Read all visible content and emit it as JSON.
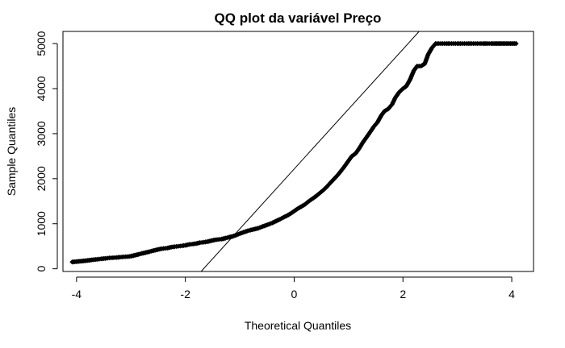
{
  "chart_data": {
    "type": "scatter",
    "title": "QQ plot da variável Preço",
    "xlabel": "Theoretical Quantiles",
    "ylabel": "Sample Quantiles",
    "xlim": [
      -4.25,
      4.4
    ],
    "ylim": [
      -60,
      5270
    ],
    "grid": false,
    "legend": "none",
    "x_ticks": [
      -4,
      -2,
      0,
      2,
      4
    ],
    "x_tick_labels": [
      "-4",
      "-2",
      "0",
      "2",
      "4"
    ],
    "y_ticks": [
      0,
      1000,
      2000,
      3000,
      4000,
      5000
    ],
    "y_tick_labels": [
      "0",
      "1000",
      "2000",
      "3000",
      "4000",
      "5000"
    ],
    "marker_color": "#000000",
    "reference_line": {
      "intercept": 2215,
      "slope": 1330
    },
    "series": [
      {
        "points": [
          [
            -4.08,
            150
          ],
          [
            -3.82,
            180
          ],
          [
            -3.7,
            200
          ],
          [
            -3.62,
            210
          ],
          [
            -3.55,
            220
          ],
          [
            -3.47,
            230
          ],
          [
            -3.4,
            240
          ],
          [
            -3.33,
            245
          ],
          [
            -3.26,
            250
          ],
          [
            -3.2,
            258
          ],
          [
            -3.13,
            265
          ],
          [
            -3.06,
            270
          ],
          [
            -3.0,
            280
          ],
          [
            -2.93,
            300
          ],
          [
            -2.86,
            320
          ],
          [
            -2.8,
            340
          ],
          [
            -2.73,
            360
          ],
          [
            -2.66,
            380
          ],
          [
            -2.6,
            400
          ],
          [
            -2.53,
            420
          ],
          [
            -2.46,
            440
          ],
          [
            -2.4,
            450
          ],
          [
            -2.33,
            460
          ],
          [
            -2.26,
            480
          ],
          [
            -2.2,
            490
          ],
          [
            -2.13,
            500
          ],
          [
            -2.06,
            510
          ],
          [
            -2.0,
            520
          ],
          [
            -1.93,
            540
          ],
          [
            -1.86,
            550
          ],
          [
            -1.8,
            560
          ],
          [
            -1.73,
            580
          ],
          [
            -1.66,
            590
          ],
          [
            -1.6,
            600
          ],
          [
            -1.53,
            620
          ],
          [
            -1.46,
            640
          ],
          [
            -1.4,
            650
          ],
          [
            -1.33,
            660
          ],
          [
            -1.26,
            680
          ],
          [
            -1.2,
            700
          ],
          [
            -1.13,
            720
          ],
          [
            -1.06,
            750
          ],
          [
            -1.0,
            780
          ],
          [
            -0.93,
            810
          ],
          [
            -0.86,
            840
          ],
          [
            -0.8,
            860
          ],
          [
            -0.73,
            880
          ],
          [
            -0.66,
            900
          ],
          [
            -0.6,
            930
          ],
          [
            -0.53,
            960
          ],
          [
            -0.46,
            990
          ],
          [
            -0.4,
            1020
          ],
          [
            -0.33,
            1060
          ],
          [
            -0.26,
            1100
          ],
          [
            -0.2,
            1140
          ],
          [
            -0.13,
            1180
          ],
          [
            -0.06,
            1230
          ],
          [
            0.0,
            1280
          ],
          [
            0.06,
            1330
          ],
          [
            0.13,
            1380
          ],
          [
            0.2,
            1430
          ],
          [
            0.26,
            1490
          ],
          [
            0.33,
            1550
          ],
          [
            0.4,
            1610
          ],
          [
            0.46,
            1670
          ],
          [
            0.53,
            1740
          ],
          [
            0.6,
            1820
          ],
          [
            0.66,
            1900
          ],
          [
            0.73,
            1990
          ],
          [
            0.8,
            2080
          ],
          [
            0.86,
            2170
          ],
          [
            0.93,
            2280
          ],
          [
            1.0,
            2400
          ],
          [
            1.06,
            2500
          ],
          [
            1.13,
            2560
          ],
          [
            1.2,
            2680
          ],
          [
            1.26,
            2800
          ],
          [
            1.33,
            2920
          ],
          [
            1.4,
            3040
          ],
          [
            1.46,
            3150
          ],
          [
            1.53,
            3250
          ],
          [
            1.6,
            3400
          ],
          [
            1.66,
            3500
          ],
          [
            1.73,
            3550
          ],
          [
            1.8,
            3650
          ],
          [
            1.86,
            3800
          ],
          [
            1.93,
            3920
          ],
          [
            2.0,
            4000
          ],
          [
            2.06,
            4050
          ],
          [
            2.13,
            4200
          ],
          [
            2.2,
            4400
          ],
          [
            2.26,
            4500
          ],
          [
            2.33,
            4500
          ],
          [
            2.4,
            4550
          ],
          [
            2.46,
            4750
          ],
          [
            2.53,
            4900
          ],
          [
            2.6,
            5000
          ],
          [
            2.66,
            5000
          ],
          [
            2.73,
            5000
          ],
          [
            2.8,
            5000
          ],
          [
            2.86,
            5000
          ],
          [
            2.93,
            5000
          ],
          [
            3.0,
            5000
          ],
          [
            3.06,
            5000
          ],
          [
            3.13,
            5000
          ],
          [
            3.2,
            5000
          ],
          [
            3.26,
            5000
          ],
          [
            3.33,
            5000
          ],
          [
            3.4,
            5000
          ],
          [
            3.47,
            5000
          ],
          [
            3.55,
            5000
          ],
          [
            3.62,
            5000
          ],
          [
            3.7,
            5000
          ],
          [
            3.82,
            5000
          ],
          [
            4.08,
            5000
          ]
        ]
      }
    ]
  }
}
